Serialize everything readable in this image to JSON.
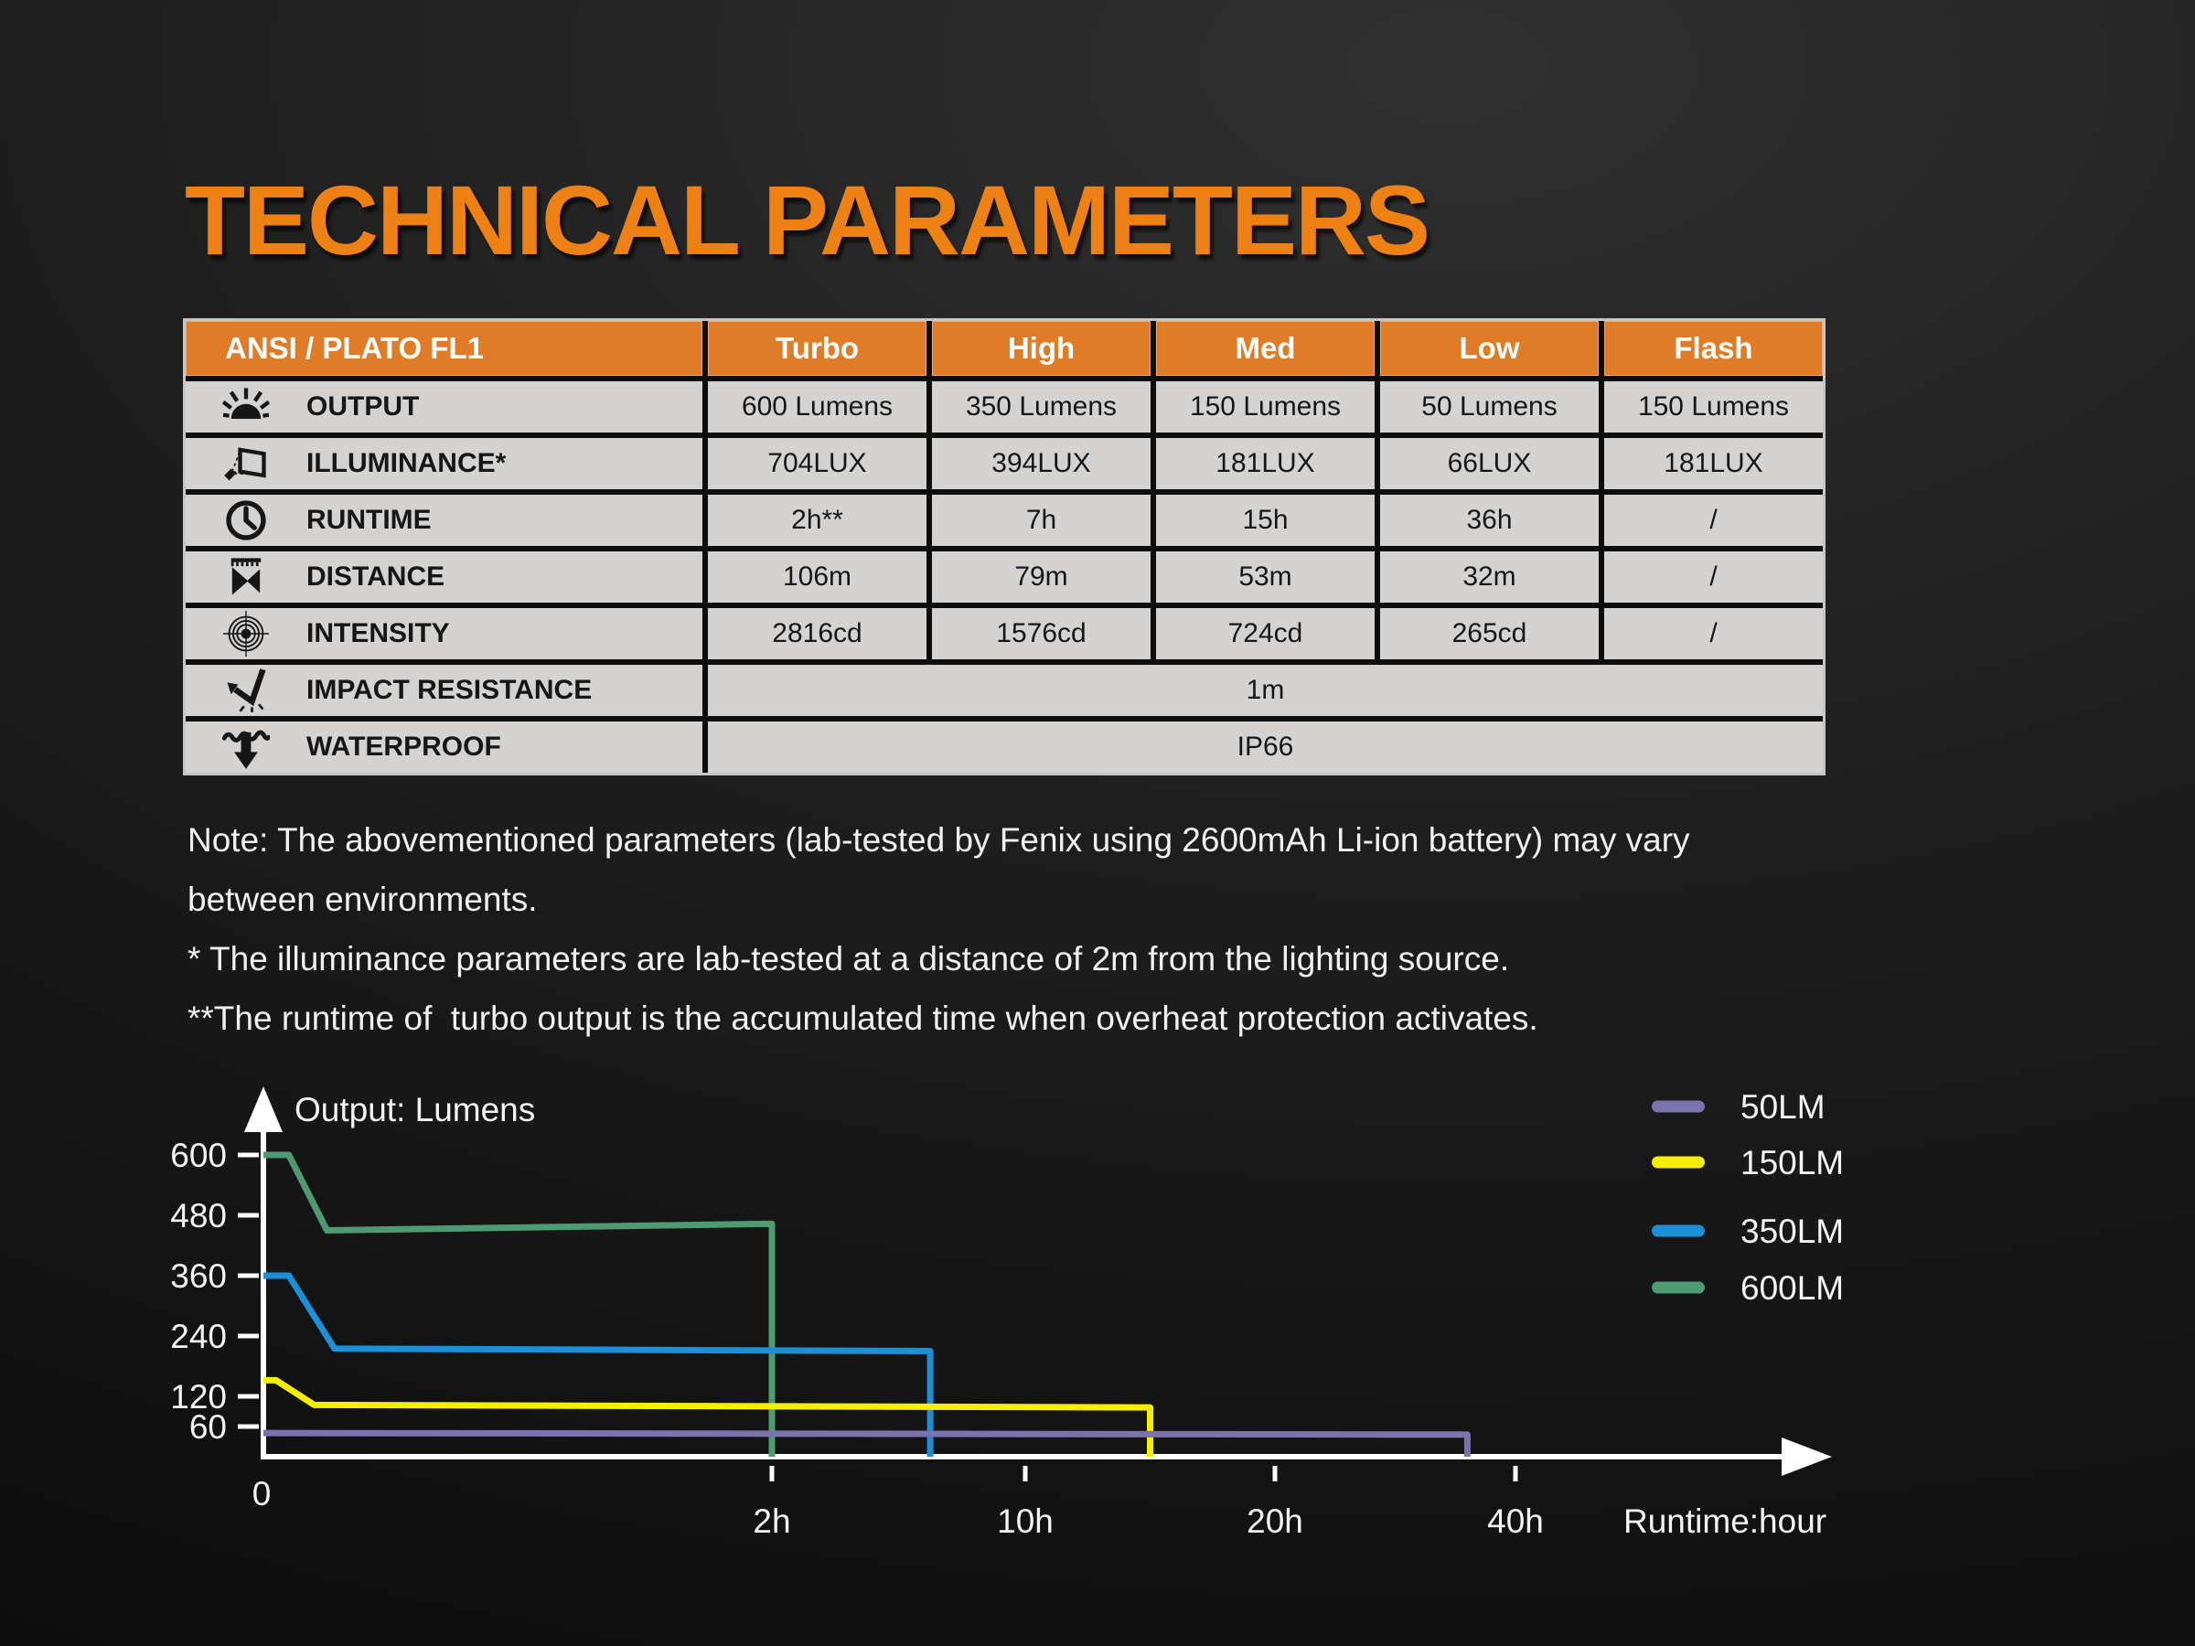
{
  "page": {
    "title": "TECHNICAL PARAMETERS"
  },
  "table": {
    "header": {
      "label": "ANSI / PLATO FL1",
      "modes": [
        "Turbo",
        "High",
        "Med",
        "Low",
        "Flash"
      ]
    },
    "rows": [
      {
        "icon": "output-icon",
        "label": "OUTPUT",
        "values": [
          "600 Lumens",
          "350 Lumens",
          "150 Lumens",
          "50 Lumens",
          "150 Lumens"
        ],
        "span": false
      },
      {
        "icon": "illuminance-icon",
        "label": "ILLUMINANCE*",
        "values": [
          "704LUX",
          "394LUX",
          "181LUX",
          "66LUX",
          "181LUX"
        ],
        "span": false
      },
      {
        "icon": "runtime-icon",
        "label": "RUNTIME",
        "values": [
          "2h**",
          "7h",
          "15h",
          "36h",
          "/"
        ],
        "span": false
      },
      {
        "icon": "distance-icon",
        "label": "DISTANCE",
        "values": [
          "106m",
          "79m",
          "53m",
          "32m",
          "/"
        ],
        "span": false
      },
      {
        "icon": "intensity-icon",
        "label": "INTENSITY",
        "values": [
          "2816cd",
          "1576cd",
          "724cd",
          "265cd",
          "/"
        ],
        "span": false
      },
      {
        "icon": "impact-icon",
        "label": "IMPACT RESISTANCE",
        "values": [
          "1m"
        ],
        "span": true
      },
      {
        "icon": "waterproof-icon",
        "label": "WATERPROOF",
        "values": [
          "IP66"
        ],
        "span": true
      }
    ]
  },
  "notes": {
    "lines": [
      "Note: The abovementioned parameters (lab-tested by Fenix using 2600mAh Li-ion battery) may vary",
      "between environments.",
      "* The illuminance parameters are lab-tested at a distance of 2m from the lighting source.",
      "**The runtime of  turbo output is the accumulated time when overheat protection activates."
    ]
  },
  "chart_data": {
    "type": "line",
    "title": "Output: Lumens",
    "xlabel": "Runtime:hour",
    "ylabel": "Output: Lumens",
    "grid": false,
    "legend_position": "top-right",
    "y_ticks": [
      600,
      480,
      360,
      240,
      120,
      60
    ],
    "ylim": [
      0,
      660
    ],
    "x_ticks": [
      {
        "t": 0,
        "label": "0"
      },
      {
        "t": 2,
        "label": "2h"
      },
      {
        "t": 10,
        "label": "10h"
      },
      {
        "t": 20,
        "label": "20h"
      },
      {
        "t": 40,
        "label": "40h"
      }
    ],
    "x_scale_note": "piecewise-linear axis: segments 0-2h, 2-10h, 10-20h, 20-40h",
    "series": [
      {
        "name": "50LM",
        "color": "#7a73ae",
        "runtime_hours": 36,
        "points": [
          [
            0,
            47
          ],
          [
            36,
            44
          ],
          [
            36,
            0
          ]
        ]
      },
      {
        "name": "150LM",
        "color": "#f6ee00",
        "runtime_hours": 15,
        "points": [
          [
            0,
            152
          ],
          [
            0.05,
            152
          ],
          [
            0.2,
            103
          ],
          [
            15,
            98
          ],
          [
            15,
            0
          ]
        ]
      },
      {
        "name": "350LM",
        "color": "#1c8fd6",
        "runtime_hours": 7,
        "points": [
          [
            0,
            360
          ],
          [
            0.1,
            360
          ],
          [
            0.28,
            215
          ],
          [
            7,
            210
          ],
          [
            7,
            0
          ]
        ]
      },
      {
        "name": "600LM",
        "color": "#4e9a73",
        "runtime_hours": 2,
        "points": [
          [
            0,
            600
          ],
          [
            0.1,
            600
          ],
          [
            0.25,
            450
          ],
          [
            2,
            463
          ],
          [
            2,
            0
          ]
        ]
      }
    ]
  },
  "colors": {
    "title_orange": "#ee8113",
    "header_orange": "#e07c28",
    "table_cell_grey": "#d4d3d1",
    "background_dark": "#1e1e1e",
    "text_light": "#f2f2f2"
  }
}
